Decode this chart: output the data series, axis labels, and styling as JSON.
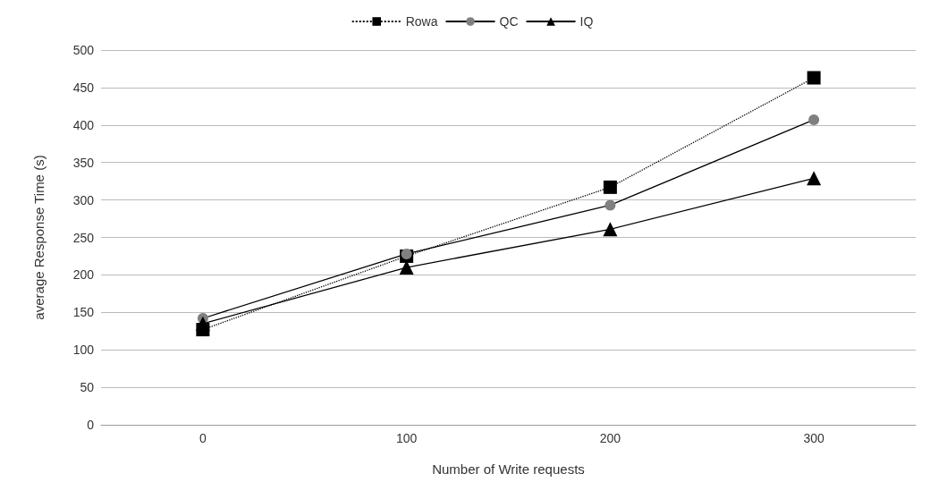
{
  "chart_data": {
    "type": "line",
    "xlabel": "Number of Write requests",
    "ylabel": "average Response Time (s)",
    "categories": [
      "0",
      "100",
      "200",
      "300"
    ],
    "series": [
      {
        "name": "Rowa",
        "color": "#000000",
        "marker": "square",
        "line_style": "dotted",
        "values": [
          127,
          225,
          317,
          463
        ]
      },
      {
        "name": "QC",
        "color": "#808080",
        "marker": "circle",
        "line_style": "solid",
        "values": [
          142,
          228,
          293,
          407
        ]
      },
      {
        "name": "IQ",
        "color": "#000000",
        "marker": "triangle",
        "line_style": "solid",
        "values": [
          135,
          210,
          261,
          329
        ]
      }
    ],
    "ylim": [
      0,
      500
    ],
    "yticks": [
      0,
      50,
      100,
      150,
      200,
      250,
      300,
      350,
      400,
      450,
      500
    ],
    "grid": "y",
    "legend": "top"
  }
}
